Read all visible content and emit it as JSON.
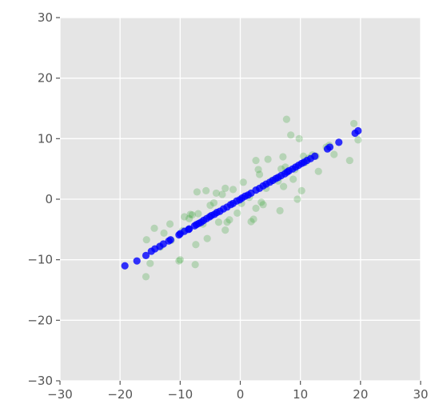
{
  "chart_data": {
    "type": "scatter",
    "title": "",
    "xlabel": "",
    "ylabel": "",
    "xlim": [
      -30,
      30
    ],
    "ylim": [
      -30,
      30
    ],
    "xticks": [
      -30,
      -20,
      -10,
      0,
      10,
      20,
      30
    ],
    "yticks": [
      -30,
      -20,
      -10,
      0,
      10,
      20,
      30
    ],
    "xtick_labels": [
      "−30",
      "−20",
      "−10",
      "0",
      "10",
      "20",
      "30"
    ],
    "ytick_labels": [
      "−30",
      "−20",
      "−10",
      "0",
      "10",
      "20",
      "30"
    ],
    "grid": true,
    "style": "ggplot",
    "colors": {
      "background": "#e5e5e5",
      "grid": "#ffffff",
      "original": "#2ca02c",
      "projected": "#0000ff"
    },
    "series": [
      {
        "color": "#2ca02c",
        "alpha": 0.25,
        "points": [
          [
            -15.7,
            -12.8
          ],
          [
            -15.0,
            -10.6
          ],
          [
            -15.6,
            -6.7
          ],
          [
            -14.3,
            -4.8
          ],
          [
            -13.3,
            -7.9
          ],
          [
            -12.7,
            -5.6
          ],
          [
            -11.7,
            -4.1
          ],
          [
            -10.2,
            -10.2
          ],
          [
            -10.0,
            -10.0
          ],
          [
            -9.6,
            -5.2
          ],
          [
            -9.3,
            -2.9
          ],
          [
            -8.5,
            -3.2
          ],
          [
            -8.0,
            -2.6
          ],
          [
            -7.5,
            -10.8
          ],
          [
            -7.4,
            -7.5
          ],
          [
            -7.0,
            -2.4
          ],
          [
            -7.2,
            1.2
          ],
          [
            -6.2,
            -4.1
          ],
          [
            -5.7,
            1.4
          ],
          [
            -5.5,
            -6.5
          ],
          [
            -5.0,
            -1.0
          ],
          [
            -4.4,
            -0.6
          ],
          [
            -4.0,
            1.0
          ],
          [
            -3.6,
            -3.8
          ],
          [
            -3.0,
            0.8
          ],
          [
            -2.5,
            -5.1
          ],
          [
            -2.2,
            -3.8
          ],
          [
            -2.5,
            1.8
          ],
          [
            -1.8,
            -3.4
          ],
          [
            -1.2,
            1.6
          ],
          [
            -0.5,
            -2.3
          ],
          [
            0.2,
            -0.7
          ],
          [
            0.5,
            2.8
          ],
          [
            1.5,
            0.3
          ],
          [
            1.8,
            -3.7
          ],
          [
            2.2,
            -3.3
          ],
          [
            2.6,
            -1.5
          ],
          [
            2.6,
            6.4
          ],
          [
            3.0,
            4.9
          ],
          [
            3.2,
            4.1
          ],
          [
            3.5,
            -0.5
          ],
          [
            3.8,
            -0.9
          ],
          [
            4.3,
            1.8
          ],
          [
            4.6,
            6.6
          ],
          [
            5.3,
            3.1
          ],
          [
            6.3,
            3.0
          ],
          [
            6.6,
            -1.9
          ],
          [
            6.8,
            5.0
          ],
          [
            7.2,
            2.1
          ],
          [
            7.5,
            5.3
          ],
          [
            7.7,
            13.2
          ],
          [
            8.4,
            10.6
          ],
          [
            8.8,
            3.3
          ],
          [
            9.1,
            4.9
          ],
          [
            9.5,
            0.0
          ],
          [
            9.8,
            10.0
          ],
          [
            10.2,
            1.4
          ],
          [
            10.5,
            7.1
          ],
          [
            10.8,
            6.1
          ],
          [
            11.4,
            6.8
          ],
          [
            12.0,
            7.3
          ],
          [
            12.6,
            7.1
          ],
          [
            13.0,
            4.6
          ],
          [
            14.3,
            8.6
          ],
          [
            14.8,
            8.9
          ],
          [
            15.6,
            7.4
          ],
          [
            18.2,
            6.4
          ],
          [
            18.9,
            12.5
          ],
          [
            19.6,
            9.8
          ],
          [
            7.1,
            7.0
          ],
          [
            -11.5,
            -6.8
          ],
          [
            -8.3,
            -2.5
          ]
        ]
      },
      {
        "color": "#0000ff",
        "alpha": 0.8,
        "points": [
          [
            -19.2,
            -11.0
          ],
          [
            -17.2,
            -10.2
          ],
          [
            -15.7,
            -9.3
          ],
          [
            -14.8,
            -8.6
          ],
          [
            -14.2,
            -8.2
          ],
          [
            -13.4,
            -7.8
          ],
          [
            -12.8,
            -7.4
          ],
          [
            -11.9,
            -6.9
          ],
          [
            -11.6,
            -6.7
          ],
          [
            -10.2,
            -5.9
          ],
          [
            -10.0,
            -5.7
          ],
          [
            -9.3,
            -5.3
          ],
          [
            -8.6,
            -5.0
          ],
          [
            -8.5,
            -4.9
          ],
          [
            -7.6,
            -4.4
          ],
          [
            -7.3,
            -4.2
          ],
          [
            -6.9,
            -4.0
          ],
          [
            -6.5,
            -3.8
          ],
          [
            -6.1,
            -3.5
          ],
          [
            -5.6,
            -3.2
          ],
          [
            -5.1,
            -2.9
          ],
          [
            -4.8,
            -2.7
          ],
          [
            -4.3,
            -2.5
          ],
          [
            -3.9,
            -2.2
          ],
          [
            -3.4,
            -2.0
          ],
          [
            -2.8,
            -1.6
          ],
          [
            -2.2,
            -1.3
          ],
          [
            -1.6,
            -0.9
          ],
          [
            -1.2,
            -0.7
          ],
          [
            -0.6,
            -0.3
          ],
          [
            -0.1,
            -0.1
          ],
          [
            0.3,
            0.2
          ],
          [
            0.8,
            0.5
          ],
          [
            1.3,
            0.7
          ],
          [
            1.8,
            1.0
          ],
          [
            2.6,
            1.5
          ],
          [
            3.2,
            1.8
          ],
          [
            3.8,
            2.2
          ],
          [
            4.3,
            2.5
          ],
          [
            4.9,
            2.8
          ],
          [
            5.4,
            3.1
          ],
          [
            5.9,
            3.4
          ],
          [
            6.3,
            3.6
          ],
          [
            6.8,
            3.9
          ],
          [
            7.4,
            4.2
          ],
          [
            7.8,
            4.5
          ],
          [
            8.1,
            4.7
          ],
          [
            8.7,
            5.0
          ],
          [
            9.2,
            5.3
          ],
          [
            9.7,
            5.6
          ],
          [
            10.2,
            5.9
          ],
          [
            10.6,
            6.1
          ],
          [
            11.1,
            6.4
          ],
          [
            11.7,
            6.7
          ],
          [
            12.4,
            7.1
          ],
          [
            14.5,
            8.3
          ],
          [
            14.9,
            8.6
          ],
          [
            16.4,
            9.4
          ],
          [
            19.1,
            10.9
          ],
          [
            19.6,
            11.3
          ]
        ]
      }
    ]
  }
}
